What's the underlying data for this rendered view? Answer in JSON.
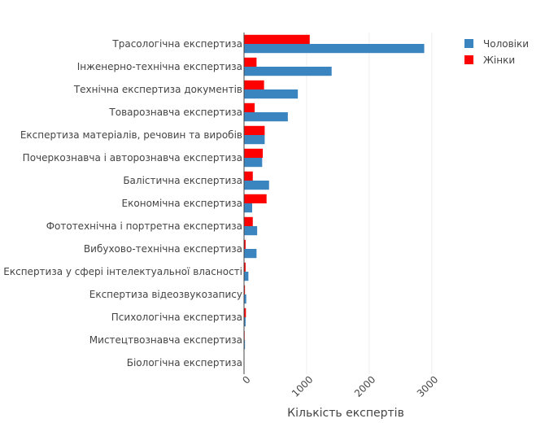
{
  "chart_data": {
    "type": "bar",
    "orientation": "horizontal",
    "title": "",
    "xlabel": "Кількість експертів",
    "ylabel": "",
    "xlim": [
      0,
      3250
    ],
    "xticks": [
      0,
      1000,
      2000,
      3000
    ],
    "grid": "vertical",
    "legend_position": "top-right",
    "categories": [
      "Трасологічна експертиза",
      "Інженерно-технічна експертиза",
      "Технічна експертиза документів",
      "Товарознавча експертиза",
      "Експертиза матеріалів, речовин та виробів",
      "Почеркознавча і авторознавча експертиза",
      "Балістична експертиза",
      "Економічна експертиза",
      "Фототехнічна і портретна експертиза",
      "Вибухово-технічна експертиза",
      "Експертиза у сфері інтелектуальної власності",
      "Експертиза відеозвукозапису",
      "Психологічна експертиза",
      "Мистецтвознавча експертиза",
      "Біологічна експертиза"
    ],
    "series": [
      {
        "name": "Чоловіки",
        "color": "#3a84c0",
        "values": [
          2880,
          1400,
          860,
          700,
          330,
          290,
          400,
          130,
          210,
          200,
          70,
          35,
          25,
          15,
          5
        ]
      },
      {
        "name": "Жінки",
        "color": "#ff0000",
        "values": [
          1050,
          200,
          320,
          170,
          330,
          300,
          140,
          360,
          140,
          25,
          25,
          15,
          30,
          10,
          3
        ]
      }
    ]
  }
}
